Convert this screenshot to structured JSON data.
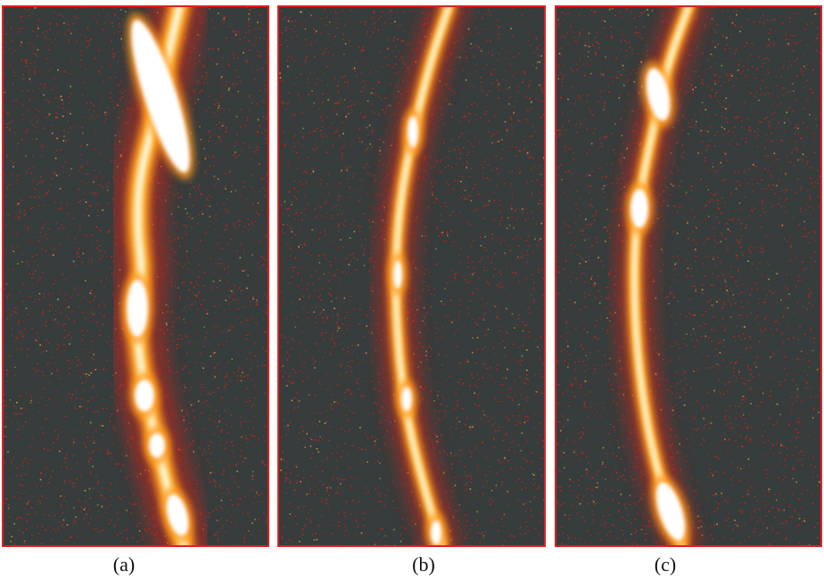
{
  "panels": [
    {
      "id": "a",
      "label": "(a)"
    },
    {
      "id": "b",
      "label": "(b)"
    },
    {
      "id": "c",
      "label": "(c)"
    }
  ],
  "colors": {
    "background": "#373c3c",
    "noise": "#c8281e",
    "glow": "#ff9a1a",
    "core": "#fff6d8",
    "frame": "#e02020"
  }
}
